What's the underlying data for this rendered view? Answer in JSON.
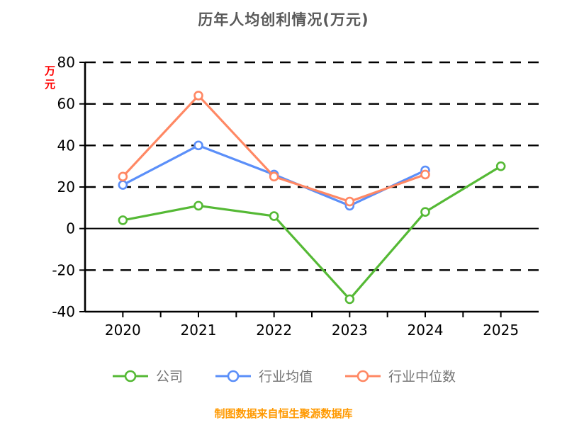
{
  "chart_data": {
    "type": "line",
    "title": "历年人均创利情况(万元)",
    "ylabel": "万元",
    "source_caption": "制图数据来自恒生聚源数据库",
    "categories": [
      "2020",
      "2021",
      "2022",
      "2023",
      "2024",
      "2025"
    ],
    "series": [
      {
        "name": "公司",
        "color": "#55B935",
        "values": [
          4,
          11,
          6,
          -34,
          8,
          30
        ]
      },
      {
        "name": "行业均值",
        "color": "#5B8FF9",
        "values": [
          21,
          40,
          26,
          11,
          28,
          null
        ]
      },
      {
        "name": "行业中位数",
        "color": "#FF8864",
        "values": [
          25,
          64,
          25,
          13,
          26,
          null
        ]
      }
    ],
    "y_ticks": [
      80,
      60,
      40,
      20,
      0,
      -20,
      -40
    ],
    "ylim": [
      -40,
      80
    ],
    "grid": "dashed-horizontal",
    "legend_position": "bottom",
    "colors": {
      "title": "#595959",
      "axis": "#000000",
      "ylabel": "#FF0000",
      "caption": "#FF9900",
      "legend_text": "#737373",
      "marker_fill": "#FFFFFF"
    }
  }
}
